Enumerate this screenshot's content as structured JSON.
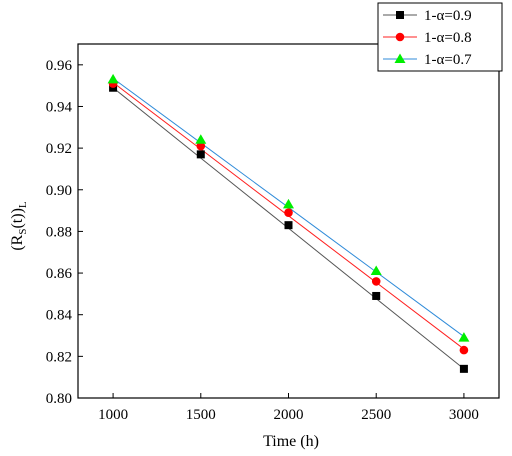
{
  "chart_data": {
    "type": "line",
    "xlabel": "Time (h)",
    "ylabel": "(R",
    "ylabel_sub1": "S",
    "ylabel_mid": "(t))",
    "ylabel_sub2": "L",
    "x": [
      1000,
      1500,
      2000,
      2500,
      3000
    ],
    "xlim": [
      800,
      3200
    ],
    "ylim": [
      0.8,
      0.97
    ],
    "xticks": [
      1000,
      1500,
      2000,
      2500,
      3000
    ],
    "yticks": [
      0.8,
      0.82,
      0.84,
      0.86,
      0.88,
      0.9,
      0.92,
      0.94,
      0.96
    ],
    "ytick_labels": [
      "0.80",
      "0.82",
      "0.84",
      "0.86",
      "0.88",
      "0.90",
      "0.92",
      "0.94",
      "0.96"
    ],
    "legend_position": "top-right",
    "grid": false,
    "series": [
      {
        "name": "1-α=0.9",
        "marker": "square",
        "color": "#000000",
        "line_color": "#555555",
        "values": [
          0.949,
          0.917,
          0.883,
          0.849,
          0.814
        ],
        "fit": [
          0.949,
          0.9152,
          0.8815,
          0.8477,
          0.814
        ]
      },
      {
        "name": "1-α=0.8",
        "marker": "circle",
        "color": "#ff0000",
        "line_color": "#ff2020",
        "values": [
          0.951,
          0.921,
          0.889,
          0.856,
          0.823
        ],
        "fit": [
          0.9515,
          0.9195,
          0.8875,
          0.8555,
          0.8235
        ]
      },
      {
        "name": "1-α=0.7",
        "marker": "triangle",
        "color": "#00ee00",
        "line_color": "#2f8bd9",
        "values": [
          0.953,
          0.924,
          0.893,
          0.861,
          0.829
        ],
        "fit": [
          0.9535,
          0.9225,
          0.8915,
          0.8605,
          0.8295
        ]
      }
    ]
  }
}
